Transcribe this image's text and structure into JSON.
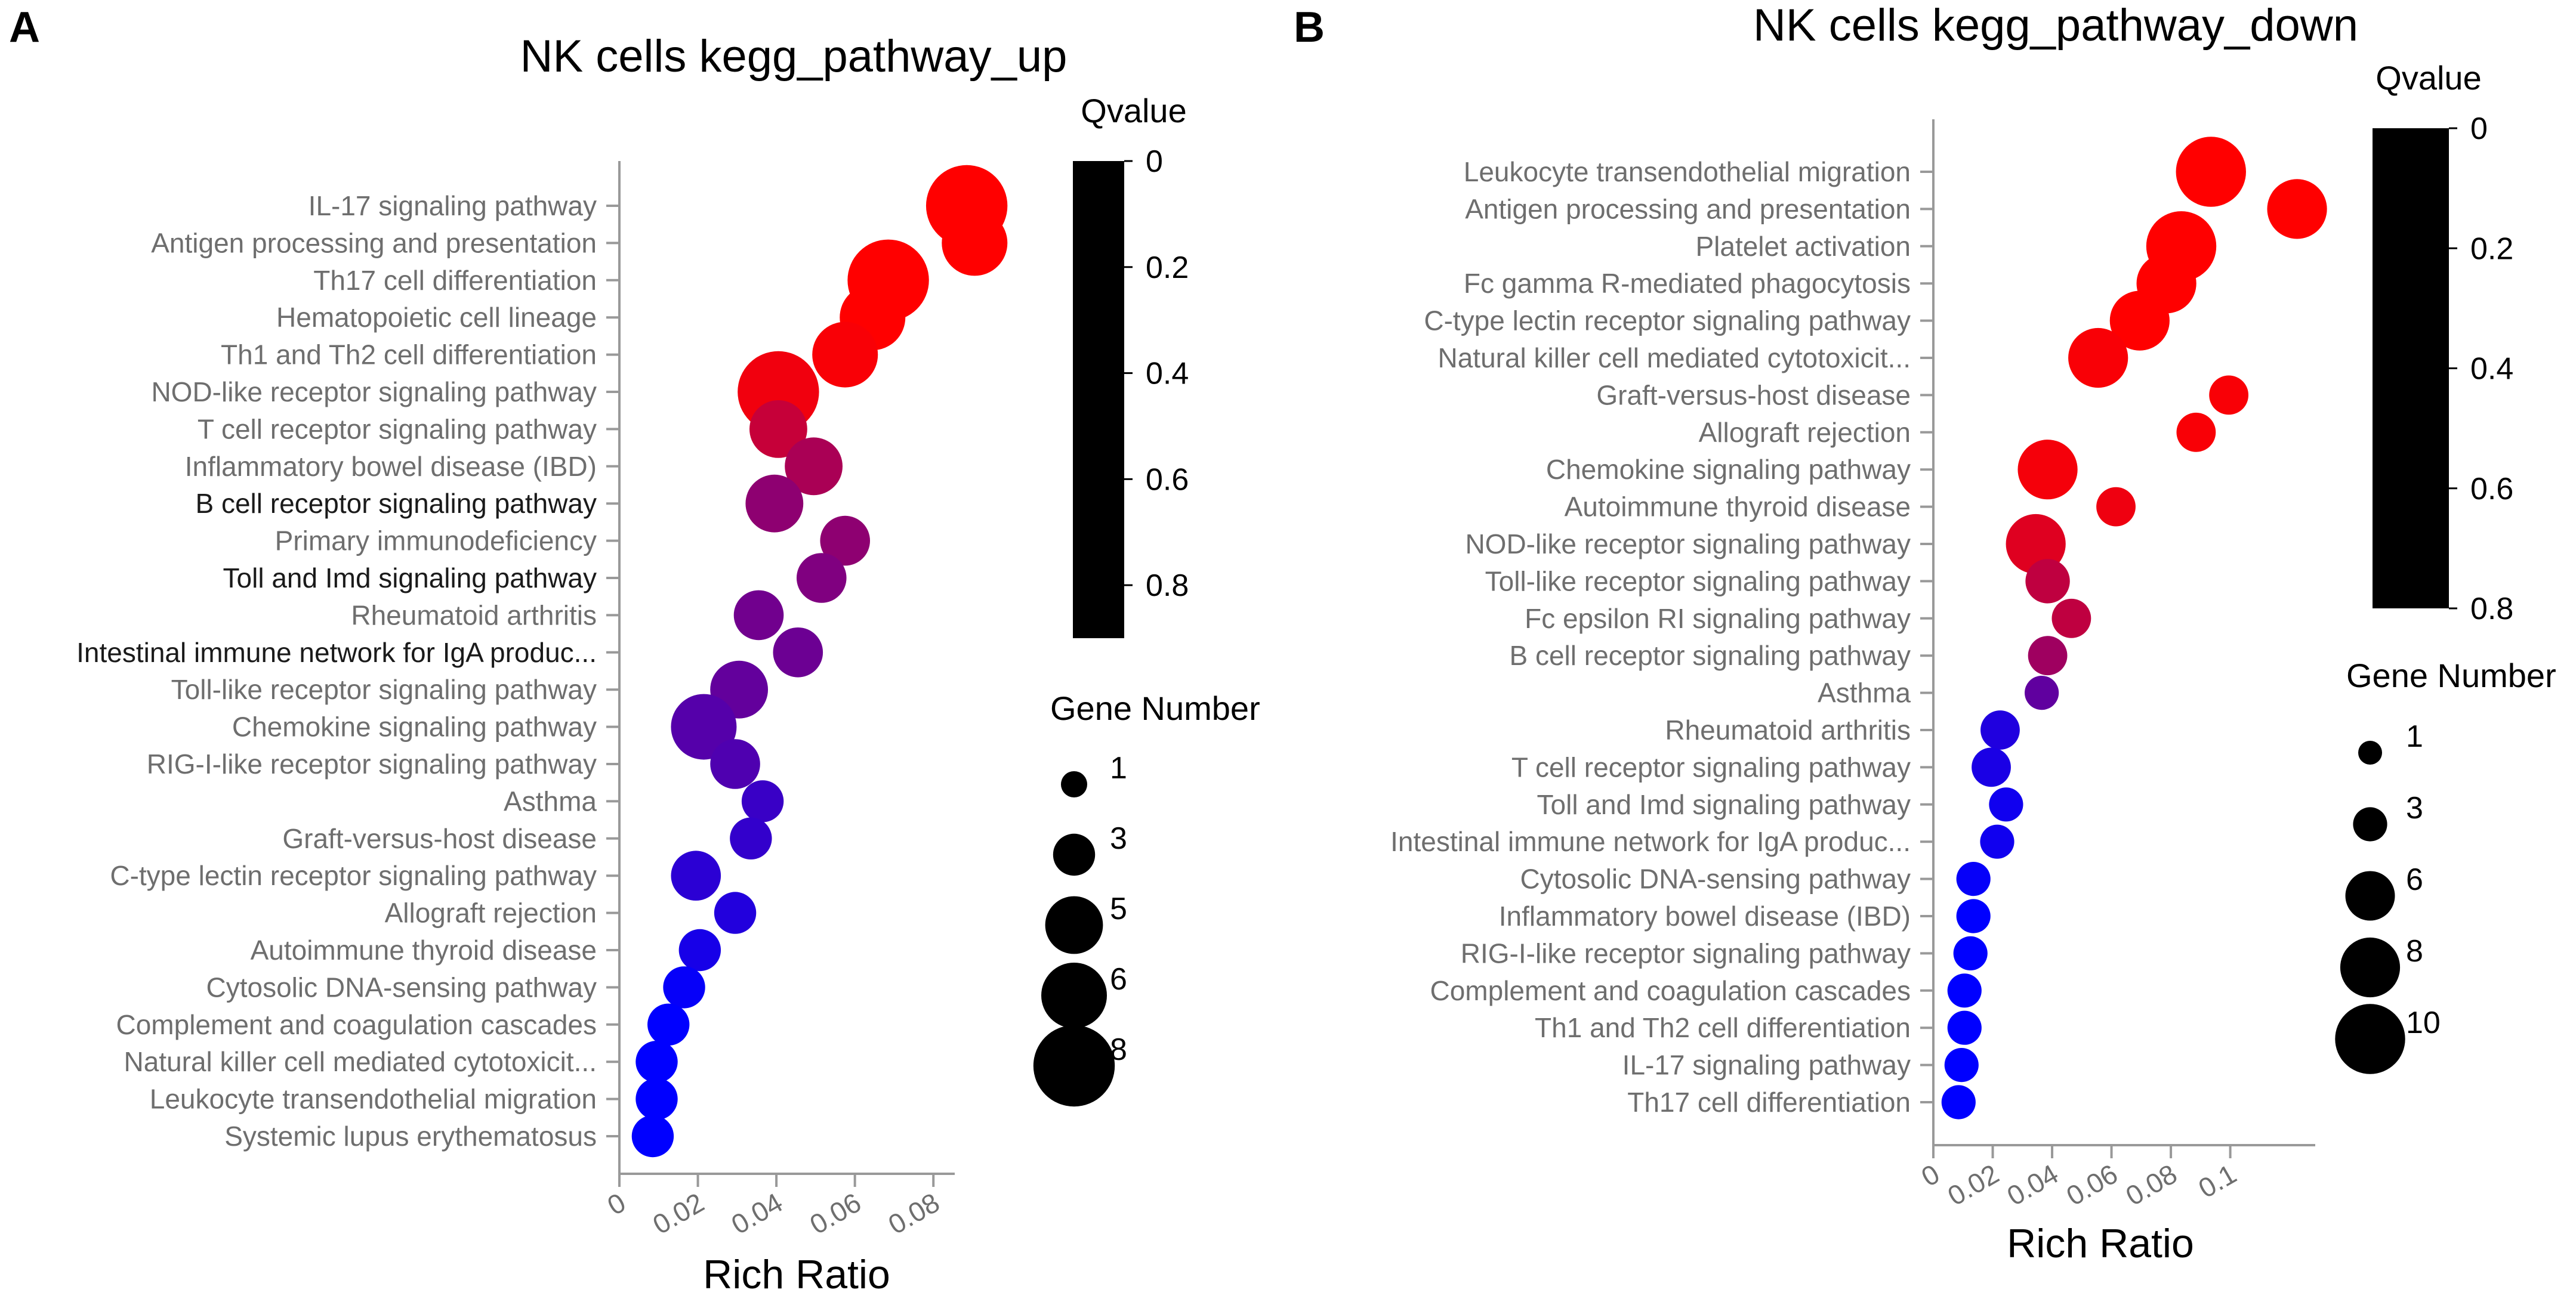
{
  "panels": [
    {
      "panel_label": "A",
      "chart_data": {
        "type": "scatter",
        "title": "NK cells kegg_pathway_up",
        "xlabel": "Rich Ratio",
        "ylabel": "",
        "xlim": [
          0,
          0.09
        ],
        "x_ticks": [
          0,
          0.02,
          0.04,
          0.06,
          0.08
        ],
        "x_tick_labels": [
          "0",
          "0.02",
          "0.04",
          "0.06",
          "0.08"
        ],
        "categories": [
          "IL-17 signaling pathway",
          "Antigen processing and presentation",
          "Th17 cell differentiation",
          "Hematopoietic cell lineage",
          "Th1 and Th2 cell differentiation",
          "NOD-like receptor signaling pathway",
          "T cell receptor signaling pathway",
          "Inflammatory bowel disease (IBD)",
          "B cell receptor signaling pathway",
          "Primary immunodeficiency",
          "Toll and Imd signaling pathway",
          "Rheumatoid arthritis",
          "Intestinal immune network for IgA produc...",
          "Toll-like receptor signaling pathway",
          "Chemokine signaling pathway",
          "RIG-I-like receptor signaling pathway",
          "Asthma",
          "Graft-versus-host disease",
          "C-type lectin receptor signaling pathway",
          "Allograft rejection",
          "Autoimmune thyroid disease",
          "Cytosolic DNA-sensing pathway",
          "Complement and coagulation cascades",
          "Natural killer cell mediated cytotoxicit...",
          "Leukocyte transendothelial migration",
          "Systemic lupus erythematosus"
        ],
        "dark_label_categories": [
          "B cell receptor signaling pathway",
          "Toll and Imd signaling pathway",
          "Intestinal immune network for IgA produc..."
        ],
        "x": [
          0.0885,
          0.0905,
          0.0685,
          0.0645,
          0.0575,
          0.0405,
          0.0405,
          0.0495,
          0.0395,
          0.0575,
          0.0515,
          0.0355,
          0.0455,
          0.0305,
          0.0215,
          0.0295,
          0.0365,
          0.0335,
          0.0195,
          0.0295,
          0.0205,
          0.0165,
          0.0125,
          0.0095,
          0.0095,
          0.0085
        ],
        "gene_number": [
          8,
          6,
          8,
          6,
          6,
          8,
          5,
          5,
          5,
          4,
          4,
          4,
          4,
          5,
          6,
          4,
          3,
          3,
          4,
          3,
          3,
          3,
          3,
          3,
          3,
          3
        ],
        "qvalue": [
          0.0,
          0.0,
          0.0,
          0.0,
          0.02,
          0.05,
          0.2,
          0.3,
          0.4,
          0.4,
          0.45,
          0.5,
          0.52,
          0.55,
          0.6,
          0.62,
          0.7,
          0.72,
          0.75,
          0.78,
          0.82,
          0.88,
          0.9,
          0.92,
          0.93,
          0.95
        ],
        "colorbar": {
          "title": "Qvalue",
          "range": [
            0,
            0.9
          ],
          "ticks": [
            0,
            0.2,
            0.4,
            0.6,
            0.8
          ],
          "tick_labels": [
            "0",
            "0.2",
            "0.4",
            "0.6",
            "0.8"
          ]
        },
        "size_legend": {
          "title": "Gene Number",
          "values": [
            1,
            3,
            5,
            6,
            8
          ],
          "labels": [
            "1",
            "3",
            "5",
            "6",
            "8"
          ]
        }
      }
    },
    {
      "panel_label": "B",
      "chart_data": {
        "type": "scatter",
        "title": "NK cells kegg_pathway_down",
        "xlabel": "Rich Ratio",
        "ylabel": "",
        "xlim": [
          0,
          0.125
        ],
        "x_ticks": [
          0,
          0.02,
          0.04,
          0.06,
          0.08,
          0.1
        ],
        "x_tick_labels": [
          "0",
          "0.02",
          "0.04",
          "0.06",
          "0.08",
          "0.1"
        ],
        "categories": [
          "Leukocyte transendothelial migration",
          "Antigen processing and presentation",
          "Platelet activation",
          "Fc gamma R-mediated phagocytosis",
          "C-type lectin receptor signaling pathway",
          "Natural killer cell mediated cytotoxicit...",
          "Graft-versus-host disease",
          "Allograft rejection",
          "Chemokine signaling pathway",
          "Autoimmune thyroid disease",
          "NOD-like receptor signaling pathway",
          "Toll-like receptor signaling pathway",
          "Fc epsilon RI signaling pathway",
          "B cell receptor signaling pathway",
          "Asthma",
          "Rheumatoid arthritis",
          "T cell receptor signaling pathway",
          "Toll and Imd signaling pathway",
          "Intestinal immune network for IgA produc...",
          "Cytosolic DNA-sensing pathway",
          "Inflammatory bowel disease (IBD)",
          "RIG-I-like receptor signaling pathway",
          "Complement and coagulation cascades",
          "Th1 and Th2 cell differentiation",
          "IL-17 signaling pathway",
          "Th17 cell differentiation"
        ],
        "dark_label_categories": [],
        "x": [
          0.0935,
          0.1225,
          0.0835,
          0.0785,
          0.0695,
          0.0555,
          0.0995,
          0.0885,
          0.0385,
          0.0615,
          0.0345,
          0.0385,
          0.0465,
          0.0385,
          0.0365,
          0.0225,
          0.0195,
          0.0245,
          0.0215,
          0.0135,
          0.0135,
          0.0125,
          0.0105,
          0.0105,
          0.0095,
          0.0085
        ],
        "gene_number": [
          10,
          8,
          10,
          8,
          8,
          8,
          4,
          4,
          8,
          4,
          8,
          5,
          4,
          4,
          3,
          4,
          4,
          3,
          3,
          3,
          3,
          3,
          3,
          3,
          3,
          3
        ],
        "qvalue": [
          0.0,
          0.0,
          0.0,
          0.0,
          0.0,
          0.02,
          0.02,
          0.02,
          0.03,
          0.05,
          0.1,
          0.2,
          0.2,
          0.3,
          0.5,
          0.7,
          0.72,
          0.75,
          0.75,
          0.78,
          0.8,
          0.8,
          0.8,
          0.8,
          0.8,
          0.8
        ],
        "colorbar": {
          "title": "Qvalue",
          "range": [
            0,
            0.8
          ],
          "ticks": [
            0,
            0.2,
            0.4,
            0.6,
            0.8
          ],
          "tick_labels": [
            "0",
            "0.2",
            "0.4",
            "0.6",
            "0.8"
          ]
        },
        "size_legend": {
          "title": "Gene Number",
          "values": [
            1,
            3,
            6,
            8,
            10
          ],
          "labels": [
            "1",
            "3",
            "6",
            "8",
            "10"
          ]
        }
      }
    }
  ],
  "colors": {
    "low_q": "#ff0000",
    "high_q": "#0000ff",
    "axis": "#999999",
    "label_light": "#6e6e6e",
    "label_dark": "#1a1a1a",
    "colorbar": "#000000",
    "text": "#000000"
  }
}
